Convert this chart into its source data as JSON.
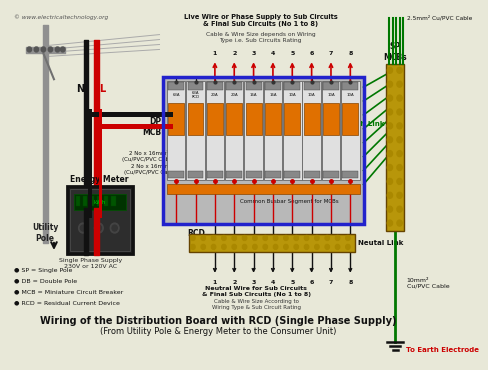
{
  "title_line1": "Wiring of the Distribution Board with RCD (Single Phase Supply)",
  "title_line2": "(From Utility Pole & Energy Meter to the Consumer Unit)",
  "watermark": "© www.electricaltechnology.org",
  "bg_color": "#e8e8d8",
  "legend": [
    "● SP = Single Pole",
    "● DB = Double Pole",
    "● MCB = Miniature Circuit Breaker",
    "● RCD = Residual Current Device"
  ],
  "top_label": "Live Wire or Phase Supply to Sub Circuits\n& Final Sub Circuits (No 1 to 8)",
  "top_label2": "Cable & Wire Size depends on Wiring\nType i.e. Sub Circuits Rating",
  "cable_top_right": "2.5mm² Cu/PVC Cable",
  "cable_bottom_right": "10mm²\nCu/PVC Cable",
  "cable_mid_label": "2 No x 16mm²\n(Cu/PVC/PVC Cable)",
  "cable_mid_label2": "2 No x 16mm²\n(Cu/PVC/PVC Cable)",
  "neutral_label": "Neutral Wire for Sub Circuits\n& Final Sub Circuits (No 1 to 8)",
  "neutral_label2": "Cable & Wire Size According to\nWiring Type & Sub Circuit Rating",
  "sp_mcbs_label": "SP\nMCBs",
  "earth_link_label": "Earth Link",
  "neutral_link_label": "Neutal Link",
  "common_busbar_label": "Common Busbar Segment for MCBs",
  "dp_mcb_label": "DP\nMCB",
  "rcd_label": "RCD",
  "energy_meter_label": "Energy Meter",
  "utility_pole_label": "Utility\nPole",
  "single_phase_label": "Single Phase Supply\n230V or 120V AC",
  "to_earth_label": "To Earth Electrode",
  "mcb_labels": [
    "63A",
    "63A\nRCD",
    "20A",
    "20A",
    "16A",
    "16A",
    "10A",
    "10A",
    "10A",
    "10A"
  ],
  "n_label": "N",
  "l_label": "L",
  "wire_black": "#111111",
  "wire_red": "#cc0000",
  "wire_green": "#007700",
  "box_blue_border": "#2222cc",
  "mcb_orange": "#e07000",
  "busbar_amber": "#c8900a",
  "terminal_brass": "#b8960a",
  "panel_bg": "#c8c8c8",
  "pole_color": "#909090"
}
